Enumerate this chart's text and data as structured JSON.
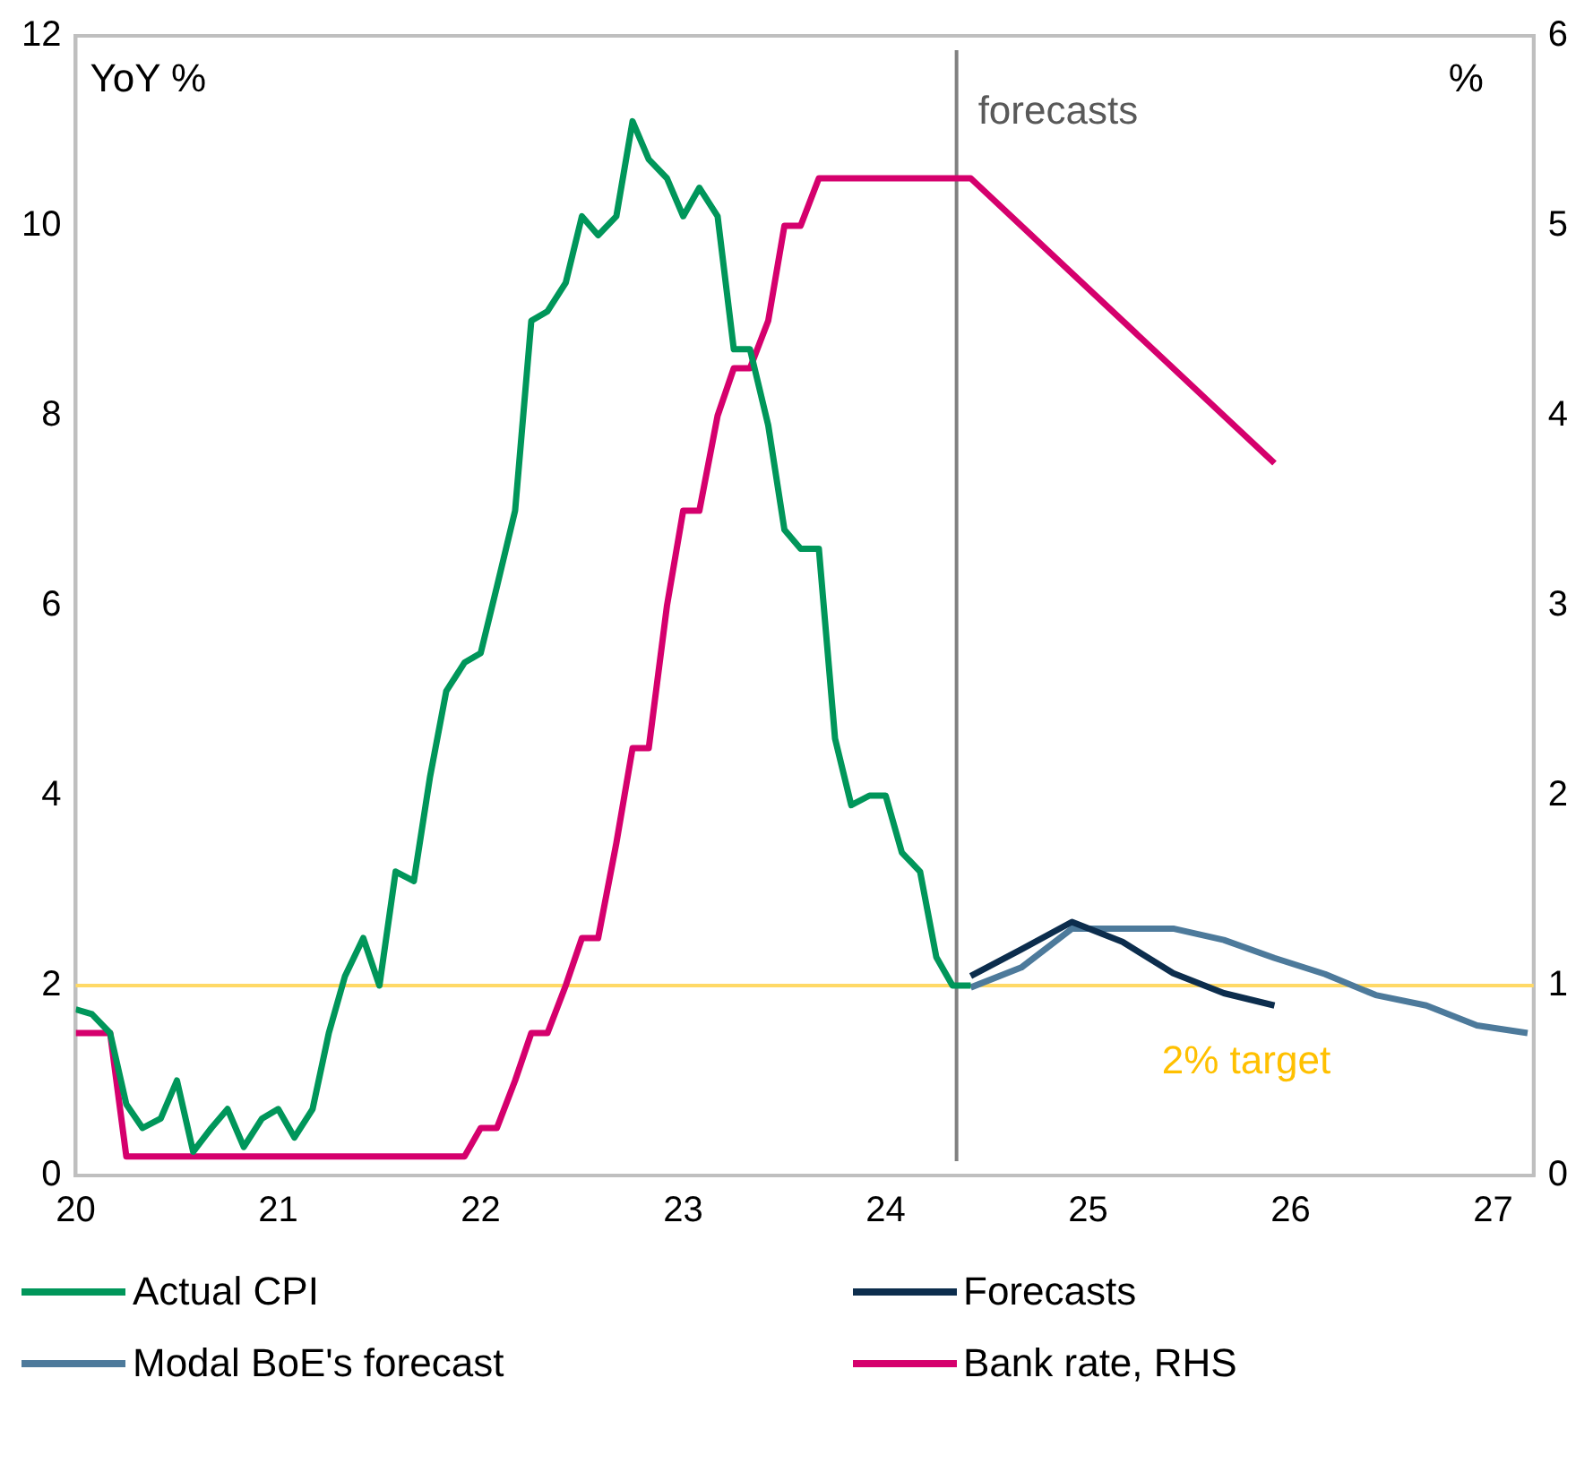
{
  "chart_data": {
    "type": "line",
    "ylabel": "YoY %",
    "y2label": "%",
    "xlim": [
      20,
      27.2
    ],
    "xticks": [
      20,
      21,
      22,
      23,
      24,
      25,
      26,
      27
    ],
    "ylim": [
      0,
      12
    ],
    "yticks": [
      0,
      2,
      4,
      6,
      8,
      10,
      12
    ],
    "y2lim": [
      0,
      6
    ],
    "y2ticks": [
      0,
      1,
      2,
      3,
      4,
      5,
      6
    ],
    "grid": false,
    "legend": "bottom",
    "marker": "none",
    "line_style": "solid",
    "series": [
      {
        "name": "Actual CPI",
        "color": "#00965a",
        "x": [
          20,
          20.08,
          20.17,
          20.25,
          20.33,
          20.42,
          20.5,
          20.58,
          20.67,
          20.75,
          20.83,
          20.92,
          21,
          21.08,
          21.17,
          21.25,
          21.33,
          21.42,
          21.5,
          21.58,
          21.67,
          21.75,
          21.83,
          21.92,
          22,
          22.08,
          22.17,
          22.25,
          22.33,
          22.42,
          22.5,
          22.58,
          22.67,
          22.75,
          22.83,
          22.92,
          23,
          23.08,
          23.17,
          23.25,
          23.33,
          23.42,
          23.5,
          23.58,
          23.67,
          23.75,
          23.83,
          23.92,
          24,
          24.08,
          24.17,
          24.25,
          24.33,
          24.42
        ],
        "values": [
          1.75,
          1.7,
          1.5,
          0.75,
          0.5,
          0.6,
          1.0,
          0.25,
          0.5,
          0.7,
          0.3,
          0.6,
          0.7,
          0.4,
          0.7,
          1.5,
          2.1,
          2.5,
          2.0,
          3.2,
          3.1,
          4.2,
          5.1,
          5.4,
          5.5,
          6.2,
          7.0,
          9.0,
          9.1,
          9.4,
          10.1,
          9.9,
          10.1,
          11.1,
          10.7,
          10.5,
          10.1,
          10.4,
          10.1,
          8.7,
          8.7,
          7.9,
          6.8,
          6.6,
          6.6,
          4.6,
          3.9,
          4.0,
          4.0,
          3.4,
          3.2,
          2.3,
          2.0,
          2.0
        ]
      },
      {
        "name": "Forecasts",
        "color": "#0c2d4d",
        "x": [
          24.42,
          24.67,
          24.92,
          25.17,
          25.42,
          25.67,
          25.92
        ],
        "values": [
          2.1,
          2.38,
          2.67,
          2.46,
          2.13,
          1.92,
          1.79
        ]
      },
      {
        "name": "Modal BoE's forecast",
        "color": "#4d7a9b",
        "x": [
          24.42,
          24.67,
          24.92,
          25.17,
          25.42,
          25.67,
          25.92,
          26.17,
          26.42,
          26.67,
          26.92,
          27.17
        ],
        "values": [
          1.98,
          2.19,
          2.6,
          2.6,
          2.6,
          2.48,
          2.29,
          2.12,
          1.9,
          1.79,
          1.58,
          1.5
        ]
      },
      {
        "name": "Bank rate, RHS",
        "color": "#d5006d",
        "axis": "y2",
        "x": [
          20,
          20.08,
          20.17,
          20.25,
          21.83,
          21.92,
          22,
          22.08,
          22.17,
          22.25,
          22.33,
          22.42,
          22.5,
          22.58,
          22.67,
          22.75,
          22.83,
          22.92,
          23,
          23.08,
          23.17,
          23.25,
          23.33,
          23.42,
          23.5,
          23.58,
          23.67,
          24.42,
          25.92
        ],
        "values": [
          0.75,
          0.75,
          0.75,
          0.1,
          0.1,
          0.1,
          0.25,
          0.25,
          0.5,
          0.75,
          0.75,
          1.0,
          1.25,
          1.25,
          1.75,
          2.25,
          2.25,
          3.0,
          3.5,
          3.5,
          4.0,
          4.25,
          4.25,
          4.5,
          5.0,
          5.0,
          5.25,
          5.25,
          3.75
        ]
      }
    ],
    "ref_lines": [
      {
        "axis": "y",
        "value": 2,
        "label": "2% target",
        "color": "#ffd966"
      },
      {
        "axis": "x",
        "value": 24.35,
        "label": "forecasts",
        "color": "#808080"
      }
    ]
  }
}
